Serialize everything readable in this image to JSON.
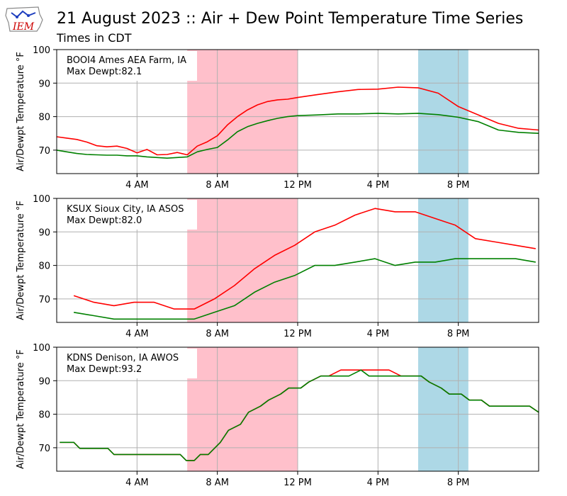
{
  "header": {
    "title": "21 August 2023 :: Air + Dew Point Temperature Time Series",
    "subtitle": "Times in CDT",
    "logo_text": "IEM"
  },
  "colors": {
    "air": "#ff0000",
    "dewpoint": "#008000",
    "shade_morning": "#ffc0cb",
    "shade_evening": "#add8e6",
    "grid": "#b0b0b0"
  },
  "chart_data": [
    {
      "type": "line",
      "station": "BOOI4 Ames AEA Farm, IA",
      "max_dewpt": "Max Dewpt:82.1",
      "ylabel": "Air/Dewpt Temperature °F",
      "xlim_hours": [
        0,
        24
      ],
      "ylim": [
        63,
        100
      ],
      "yticks": [
        70,
        80,
        90,
        100
      ],
      "xticks": [
        {
          "hour": 4,
          "label": "4 AM"
        },
        {
          "hour": 8,
          "label": "8 AM"
        },
        {
          "hour": 12,
          "label": "12 PM"
        },
        {
          "hour": 16,
          "label": "4 PM"
        },
        {
          "hour": 20,
          "label": "8 PM"
        }
      ],
      "grid": true,
      "shading": [
        {
          "start": 6.5,
          "end": 12,
          "color": "pink"
        },
        {
          "start": 18,
          "end": 20.5,
          "color": "lightblue"
        }
      ],
      "series": [
        {
          "role": "air",
          "x": [
            0,
            0.5,
            1,
            1.5,
            2,
            2.5,
            3,
            3.5,
            4,
            4.5,
            5,
            5.5,
            6,
            6.5,
            7,
            7.5,
            8,
            8.5,
            9,
            9.5,
            10,
            10.5,
            11,
            11.5,
            12,
            13,
            14,
            15,
            16,
            17,
            18,
            19,
            20,
            21,
            22,
            23,
            24
          ],
          "y": [
            74,
            73.6,
            73.2,
            72.4,
            71.3,
            71.0,
            71.2,
            70.5,
            69.2,
            70.2,
            68.6,
            68.7,
            69.3,
            68.6,
            71.2,
            72.5,
            74.3,
            77.5,
            80.0,
            82.0,
            83.5,
            84.5,
            85.0,
            85.2,
            85.7,
            86.6,
            87.4,
            88.1,
            88.2,
            88.8,
            88.6,
            87.0,
            83.0,
            80.5,
            78.0,
            76.5,
            76.0
          ]
        },
        {
          "role": "dewpoint",
          "x": [
            0,
            0.5,
            1,
            1.5,
            2,
            2.5,
            3,
            3.5,
            4,
            4.5,
            5,
            5.5,
            6,
            6.5,
            7,
            7.5,
            8,
            8.5,
            9,
            9.5,
            10,
            10.5,
            11,
            11.5,
            12,
            13,
            14,
            15,
            16,
            17,
            18,
            19,
            20,
            21,
            22,
            23,
            24
          ],
          "y": [
            70,
            69.5,
            69.0,
            68.7,
            68.6,
            68.5,
            68.5,
            68.3,
            68.3,
            68.0,
            67.8,
            67.6,
            67.8,
            68.0,
            69.5,
            70.2,
            70.8,
            73.0,
            75.5,
            77.0,
            78.0,
            78.8,
            79.5,
            80.0,
            80.3,
            80.5,
            80.8,
            80.8,
            81.0,
            80.8,
            81.0,
            80.6,
            79.8,
            78.5,
            76.0,
            75.3,
            75.0
          ]
        }
      ]
    },
    {
      "type": "line",
      "station": "KSUX Sioux City, IA ASOS",
      "max_dewpt": "Max Dewpt:82.0",
      "ylabel": "Air/Dewpt Temperature °F",
      "xlim_hours": [
        0,
        24
      ],
      "ylim": [
        63,
        100
      ],
      "yticks": [
        70,
        80,
        90,
        100
      ],
      "xticks": [
        {
          "hour": 4,
          "label": "4 AM"
        },
        {
          "hour": 8,
          "label": "8 AM"
        },
        {
          "hour": 12,
          "label": "12 PM"
        },
        {
          "hour": 16,
          "label": "4 PM"
        },
        {
          "hour": 20,
          "label": "8 PM"
        }
      ],
      "grid": true,
      "shading": [
        {
          "start": 6.5,
          "end": 12,
          "color": "pink"
        },
        {
          "start": 18,
          "end": 20.5,
          "color": "lightblue"
        }
      ],
      "series": [
        {
          "role": "air",
          "x": [
            0.85,
            1.85,
            2.85,
            3.85,
            4.85,
            5.85,
            6.85,
            7.85,
            8.85,
            9.85,
            10.85,
            11.85,
            12.85,
            13.85,
            14.85,
            15.85,
            16.85,
            17.85,
            18.85,
            19.85,
            20.85,
            21.85,
            22.85,
            23.85
          ],
          "y": [
            71,
            69,
            68,
            69,
            69,
            67,
            67,
            70,
            74,
            79,
            83,
            86,
            90,
            92,
            95,
            97,
            96,
            96,
            94,
            92,
            88,
            87,
            86,
            85
          ]
        },
        {
          "role": "dewpoint",
          "x": [
            0.85,
            1.85,
            2.85,
            3.85,
            4.85,
            5.85,
            6.85,
            7.85,
            8.85,
            9.85,
            10.85,
            11.85,
            12.85,
            13.85,
            14.85,
            15.85,
            16.85,
            17.85,
            18.85,
            19.85,
            20.85,
            21.85,
            22.85,
            23.85
          ],
          "y": [
            66,
            65,
            64,
            64,
            64,
            64,
            64,
            66,
            68,
            72,
            75,
            77,
            80,
            80,
            81,
            82,
            80,
            81,
            81,
            82,
            82,
            82,
            82,
            81
          ]
        }
      ]
    },
    {
      "type": "line",
      "station": "KDNS Denison, IA AWOS",
      "max_dewpt": "Max Dewpt:93.2",
      "ylabel": "Air/Dewpt Temperature °F",
      "xlim_hours": [
        0,
        24
      ],
      "ylim": [
        63,
        100
      ],
      "yticks": [
        70,
        80,
        90,
        100
      ],
      "xticks": [
        {
          "hour": 4,
          "label": "4 AM"
        },
        {
          "hour": 8,
          "label": "8 AM"
        },
        {
          "hour": 12,
          "label": "12 PM"
        },
        {
          "hour": 16,
          "label": "4 PM"
        },
        {
          "hour": 20,
          "label": "8 PM"
        }
      ],
      "grid": true,
      "shading": [
        {
          "start": 6.5,
          "end": 12,
          "color": "pink"
        },
        {
          "start": 18,
          "end": 20.5,
          "color": "lightblue"
        }
      ],
      "series": [
        {
          "role": "air",
          "x": [
            0.15,
            0.85,
            1.15,
            2.55,
            2.85,
            6.15,
            6.45,
            6.85,
            7.15,
            7.55,
            8.15,
            8.55,
            9.15,
            9.55,
            10.15,
            10.55,
            11.15,
            11.55,
            12.15,
            12.55,
            13.15,
            13.55,
            14.15,
            14.55,
            15.15,
            15.55,
            16.15,
            16.55,
            17.15,
            18.15,
            18.55,
            19.15,
            19.55,
            20.15,
            20.55,
            21.15,
            21.55,
            22.15,
            22.55,
            23.15,
            23.55,
            24.0
          ],
          "y": [
            71.6,
            71.6,
            69.8,
            69.8,
            68,
            68,
            66.2,
            66.2,
            68,
            68,
            71.6,
            75.2,
            77.0,
            80.6,
            82.4,
            84.2,
            86.0,
            87.8,
            87.8,
            89.6,
            91.4,
            91.4,
            93.2,
            93.2,
            93.2,
            93.2,
            93.2,
            93.2,
            91.4,
            91.4,
            89.6,
            87.8,
            86.0,
            86.0,
            84.2,
            84.2,
            82.4,
            82.4,
            82.4,
            82.4,
            82.4,
            80.6
          ]
        },
        {
          "role": "dewpoint",
          "x": [
            0.15,
            0.85,
            1.15,
            2.55,
            2.85,
            6.15,
            6.45,
            6.85,
            7.15,
            7.55,
            8.15,
            8.55,
            9.15,
            9.55,
            10.15,
            10.55,
            11.15,
            11.55,
            12.15,
            12.55,
            13.15,
            13.55,
            14.15,
            14.55,
            15.15,
            15.55,
            16.15,
            16.55,
            17.15,
            18.15,
            18.55,
            19.15,
            19.55,
            20.15,
            20.55,
            21.15,
            21.55,
            22.15,
            22.55,
            23.15,
            23.55,
            24.0
          ],
          "y": [
            71.6,
            71.6,
            69.8,
            69.8,
            68,
            68,
            66.2,
            66.2,
            68,
            68,
            71.6,
            75.2,
            77.0,
            80.6,
            82.4,
            84.2,
            86.0,
            87.8,
            87.8,
            89.6,
            91.4,
            91.4,
            91.4,
            91.4,
            93.2,
            91.4,
            91.4,
            91.4,
            91.4,
            91.4,
            89.6,
            87.8,
            86.0,
            86.0,
            84.2,
            84.2,
            82.4,
            82.4,
            82.4,
            82.4,
            82.4,
            80.6
          ]
        }
      ]
    }
  ]
}
